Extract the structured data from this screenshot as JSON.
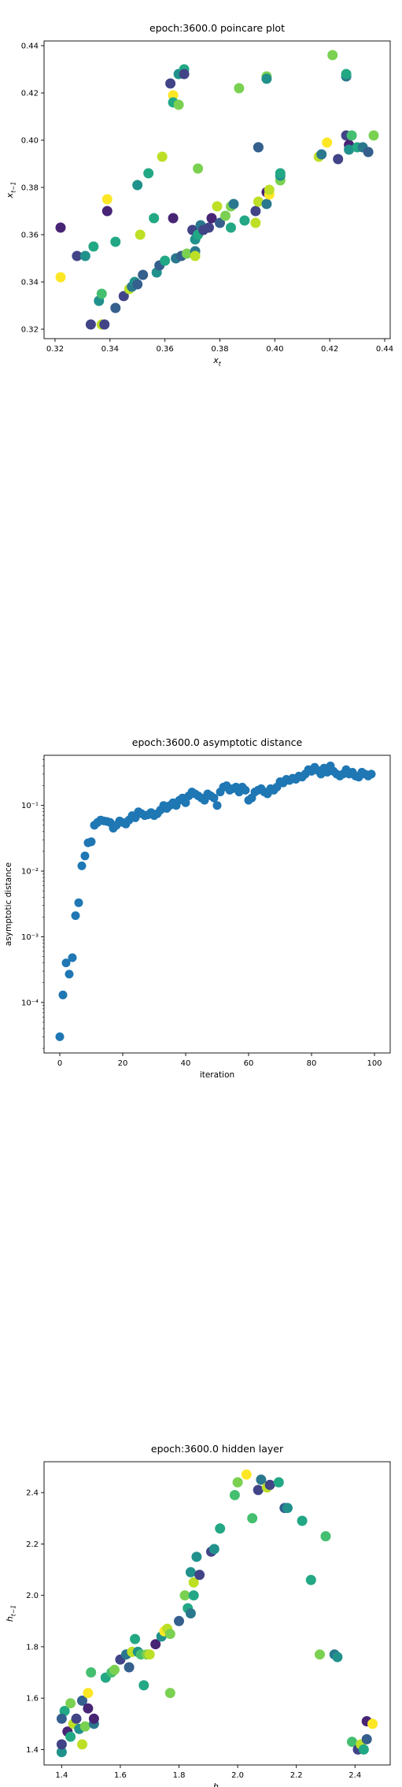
{
  "chart_data": [
    {
      "type": "scatter",
      "title": "epoch:3600.0 poincare plot",
      "xlabel": "x_t",
      "ylabel": "x_{t-1}",
      "xlim": [
        0.316,
        0.442
      ],
      "ylim": [
        0.316,
        0.442
      ],
      "xticks": [
        0.32,
        0.34,
        0.36,
        0.38,
        0.4,
        0.42,
        0.44
      ],
      "yticks": [
        0.32,
        0.34,
        0.36,
        0.38,
        0.4,
        0.42,
        0.44
      ],
      "xtick_labels": [
        "0.32",
        "0.34",
        "0.36",
        "0.38",
        "0.40",
        "0.42",
        "0.44"
      ],
      "ytick_labels": [
        "0.32",
        "0.34",
        "0.36",
        "0.38",
        "0.40",
        "0.42",
        "0.44"
      ],
      "grid": false,
      "colormap": "viridis",
      "points": [
        {
          "x": 0.322,
          "y": 0.363,
          "c": 0.05
        },
        {
          "x": 0.322,
          "y": 0.342,
          "c": 0.95
        },
        {
          "x": 0.328,
          "y": 0.351,
          "c": 0.15
        },
        {
          "x": 0.331,
          "y": 0.351,
          "c": 0.45
        },
        {
          "x": 0.333,
          "y": 0.322,
          "c": 0.15
        },
        {
          "x": 0.334,
          "y": 0.355,
          "c": 0.55
        },
        {
          "x": 0.336,
          "y": 0.332,
          "c": 0.5
        },
        {
          "x": 0.337,
          "y": 0.322,
          "c": 0.9
        },
        {
          "x": 0.337,
          "y": 0.335,
          "c": 0.7
        },
        {
          "x": 0.338,
          "y": 0.322,
          "c": 0.2
        },
        {
          "x": 0.339,
          "y": 0.375,
          "c": 0.95
        },
        {
          "x": 0.339,
          "y": 0.37,
          "c": 0.05
        },
        {
          "x": 0.342,
          "y": 0.357,
          "c": 0.6
        },
        {
          "x": 0.342,
          "y": 0.329,
          "c": 0.3
        },
        {
          "x": 0.345,
          "y": 0.334,
          "c": 0.2
        },
        {
          "x": 0.347,
          "y": 0.337,
          "c": 0.85
        },
        {
          "x": 0.348,
          "y": 0.338,
          "c": 0.35
        },
        {
          "x": 0.349,
          "y": 0.34,
          "c": 0.45
        },
        {
          "x": 0.35,
          "y": 0.339,
          "c": 0.25
        },
        {
          "x": 0.35,
          "y": 0.381,
          "c": 0.5
        },
        {
          "x": 0.351,
          "y": 0.36,
          "c": 0.9
        },
        {
          "x": 0.352,
          "y": 0.343,
          "c": 0.3
        },
        {
          "x": 0.354,
          "y": 0.386,
          "c": 0.6
        },
        {
          "x": 0.356,
          "y": 0.367,
          "c": 0.6
        },
        {
          "x": 0.357,
          "y": 0.344,
          "c": 0.5
        },
        {
          "x": 0.358,
          "y": 0.347,
          "c": 0.3
        },
        {
          "x": 0.359,
          "y": 0.393,
          "c": 0.85
        },
        {
          "x": 0.36,
          "y": 0.349,
          "c": 0.55
        },
        {
          "x": 0.362,
          "y": 0.424,
          "c": 0.15
        },
        {
          "x": 0.363,
          "y": 0.419,
          "c": 0.95
        },
        {
          "x": 0.363,
          "y": 0.416,
          "c": 0.55
        },
        {
          "x": 0.363,
          "y": 0.367,
          "c": 0.1
        },
        {
          "x": 0.364,
          "y": 0.35,
          "c": 0.35
        },
        {
          "x": 0.365,
          "y": 0.428,
          "c": 0.45
        },
        {
          "x": 0.365,
          "y": 0.415,
          "c": 0.8
        },
        {
          "x": 0.366,
          "y": 0.351,
          "c": 0.25
        },
        {
          "x": 0.367,
          "y": 0.43,
          "c": 0.6
        },
        {
          "x": 0.367,
          "y": 0.428,
          "c": 0.2
        },
        {
          "x": 0.368,
          "y": 0.352,
          "c": 0.8
        },
        {
          "x": 0.37,
          "y": 0.362,
          "c": 0.15
        },
        {
          "x": 0.371,
          "y": 0.353,
          "c": 0.35
        },
        {
          "x": 0.371,
          "y": 0.358,
          "c": 0.5
        },
        {
          "x": 0.371,
          "y": 0.351,
          "c": 0.9
        },
        {
          "x": 0.372,
          "y": 0.36,
          "c": 0.6
        },
        {
          "x": 0.372,
          "y": 0.388,
          "c": 0.8
        },
        {
          "x": 0.373,
          "y": 0.364,
          "c": 0.4
        },
        {
          "x": 0.374,
          "y": 0.362,
          "c": 0.2
        },
        {
          "x": 0.376,
          "y": 0.363,
          "c": 0.15
        },
        {
          "x": 0.377,
          "y": 0.367,
          "c": 0.1
        },
        {
          "x": 0.379,
          "y": 0.372,
          "c": 0.9
        },
        {
          "x": 0.38,
          "y": 0.365,
          "c": 0.25
        },
        {
          "x": 0.382,
          "y": 0.368,
          "c": 0.75
        },
        {
          "x": 0.384,
          "y": 0.363,
          "c": 0.6
        },
        {
          "x": 0.384,
          "y": 0.372,
          "c": 0.8
        },
        {
          "x": 0.385,
          "y": 0.373,
          "c": 0.4
        },
        {
          "x": 0.387,
          "y": 0.422,
          "c": 0.8
        },
        {
          "x": 0.389,
          "y": 0.366,
          "c": 0.6
        },
        {
          "x": 0.393,
          "y": 0.37,
          "c": 0.2
        },
        {
          "x": 0.393,
          "y": 0.365,
          "c": 0.85
        },
        {
          "x": 0.394,
          "y": 0.374,
          "c": 0.9
        },
        {
          "x": 0.394,
          "y": 0.397,
          "c": 0.6
        },
        {
          "x": 0.394,
          "y": 0.397,
          "c": 0.25
        },
        {
          "x": 0.397,
          "y": 0.427,
          "c": 0.75
        },
        {
          "x": 0.397,
          "y": 0.426,
          "c": 0.45
        },
        {
          "x": 0.397,
          "y": 0.373,
          "c": 0.4
        },
        {
          "x": 0.397,
          "y": 0.378,
          "c": 0.1
        },
        {
          "x": 0.398,
          "y": 0.377,
          "c": 0.95
        },
        {
          "x": 0.398,
          "y": 0.379,
          "c": 0.85
        },
        {
          "x": 0.402,
          "y": 0.383,
          "c": 0.75
        },
        {
          "x": 0.402,
          "y": 0.385,
          "c": 0.45
        },
        {
          "x": 0.402,
          "y": 0.386,
          "c": 0.6
        },
        {
          "x": 0.416,
          "y": 0.393,
          "c": 0.85
        },
        {
          "x": 0.417,
          "y": 0.394,
          "c": 0.35
        },
        {
          "x": 0.419,
          "y": 0.399,
          "c": 0.95
        },
        {
          "x": 0.421,
          "y": 0.436,
          "c": 0.8
        },
        {
          "x": 0.423,
          "y": 0.392,
          "c": 0.15
        },
        {
          "x": 0.426,
          "y": 0.427,
          "c": 0.4
        },
        {
          "x": 0.426,
          "y": 0.428,
          "c": 0.6
        },
        {
          "x": 0.426,
          "y": 0.402,
          "c": 0.2
        },
        {
          "x": 0.427,
          "y": 0.398,
          "c": 0.1
        },
        {
          "x": 0.427,
          "y": 0.396,
          "c": 0.5
        },
        {
          "x": 0.428,
          "y": 0.402,
          "c": 0.65
        },
        {
          "x": 0.43,
          "y": 0.397,
          "c": 0.55
        },
        {
          "x": 0.432,
          "y": 0.397,
          "c": 0.4
        },
        {
          "x": 0.434,
          "y": 0.395,
          "c": 0.25
        },
        {
          "x": 0.436,
          "y": 0.402,
          "c": 0.75
        }
      ]
    },
    {
      "type": "scatter",
      "title": "epoch:3600.0 asymptotic distance",
      "xlabel": "iteration",
      "ylabel": "asymptotic distance",
      "xlim": [
        -5,
        105
      ],
      "yscale": "log",
      "ylim": [
        1.7e-05,
        0.58
      ],
      "xticks": [
        0,
        20,
        40,
        60,
        80,
        100
      ],
      "xtick_labels": [
        "0",
        "20",
        "40",
        "60",
        "80",
        "100"
      ],
      "yticks": [
        0.0001,
        0.001,
        0.01,
        0.1
      ],
      "ytick_labels": [
        "10⁻⁴",
        "10⁻³",
        "10⁻²",
        "10⁻¹"
      ],
      "grid": false,
      "color": "#1f77b4",
      "x": [
        0,
        1,
        2,
        3,
        4,
        5,
        6,
        7,
        8,
        9,
        10,
        11,
        12,
        13,
        14,
        15,
        16,
        17,
        18,
        19,
        20,
        21,
        22,
        23,
        24,
        25,
        26,
        27,
        28,
        29,
        30,
        31,
        32,
        33,
        34,
        35,
        36,
        37,
        38,
        39,
        40,
        41,
        42,
        43,
        44,
        45,
        46,
        47,
        48,
        49,
        50,
        51,
        52,
        53,
        54,
        55,
        56,
        57,
        58,
        59,
        60,
        61,
        62,
        63,
        64,
        65,
        66,
        67,
        68,
        69,
        70,
        71,
        72,
        73,
        74,
        75,
        76,
        77,
        78,
        79,
        80,
        81,
        82,
        83,
        84,
        85,
        86,
        87,
        88,
        89,
        90,
        91,
        92,
        93,
        94,
        95,
        96,
        97,
        98,
        99
      ],
      "y": [
        3e-05,
        0.00013,
        0.0004,
        0.00027,
        0.00048,
        0.0021,
        0.0033,
        0.012,
        0.017,
        0.027,
        0.028,
        0.05,
        0.055,
        0.06,
        0.058,
        0.057,
        0.055,
        0.045,
        0.05,
        0.058,
        0.055,
        0.052,
        0.06,
        0.07,
        0.065,
        0.08,
        0.075,
        0.07,
        0.072,
        0.078,
        0.07,
        0.075,
        0.085,
        0.1,
        0.09,
        0.1,
        0.11,
        0.1,
        0.12,
        0.13,
        0.11,
        0.14,
        0.16,
        0.15,
        0.14,
        0.13,
        0.12,
        0.15,
        0.14,
        0.13,
        0.1,
        0.16,
        0.19,
        0.2,
        0.17,
        0.18,
        0.19,
        0.16,
        0.19,
        0.17,
        0.12,
        0.13,
        0.16,
        0.17,
        0.18,
        0.16,
        0.15,
        0.18,
        0.17,
        0.19,
        0.23,
        0.22,
        0.25,
        0.24,
        0.26,
        0.25,
        0.28,
        0.27,
        0.3,
        0.35,
        0.33,
        0.38,
        0.34,
        0.3,
        0.37,
        0.32,
        0.4,
        0.33,
        0.3,
        0.28,
        0.3,
        0.35,
        0.3,
        0.32,
        0.28,
        0.27,
        0.32,
        0.3,
        0.28,
        0.3
      ]
    },
    {
      "type": "scatter",
      "title": "epoch:3600.0 hidden layer",
      "xlabel": "h_t",
      "ylabel": "h_{t-1}",
      "xlim": [
        1.34,
        2.52
      ],
      "ylim": [
        1.34,
        2.52
      ],
      "xticks": [
        1.4,
        1.6,
        1.8,
        2.0,
        2.2,
        2.4
      ],
      "yticks": [
        1.4,
        1.6,
        1.8,
        2.0,
        2.2,
        2.4
      ],
      "xtick_labels": [
        "1.4",
        "1.6",
        "1.8",
        "2.0",
        "2.2",
        "2.4"
      ],
      "ytick_labels": [
        "1.4",
        "1.6",
        "1.8",
        "2.0",
        "2.2",
        "2.4"
      ],
      "grid": false,
      "colormap": "viridis",
      "points": [
        {
          "x": 1.4,
          "y": 1.39,
          "c": 0.45
        },
        {
          "x": 1.4,
          "y": 1.42,
          "c": 0.2
        },
        {
          "x": 1.41,
          "y": 1.55,
          "c": 0.55
        },
        {
          "x": 1.4,
          "y": 1.52,
          "c": 0.3
        },
        {
          "x": 1.42,
          "y": 1.47,
          "c": 0.1
        },
        {
          "x": 1.43,
          "y": 1.58,
          "c": 0.8
        },
        {
          "x": 1.43,
          "y": 1.45,
          "c": 0.6
        },
        {
          "x": 1.44,
          "y": 1.5,
          "c": 0.9
        },
        {
          "x": 1.45,
          "y": 1.52,
          "c": 0.15
        },
        {
          "x": 1.46,
          "y": 1.48,
          "c": 0.5
        },
        {
          "x": 1.47,
          "y": 1.42,
          "c": 0.85
        },
        {
          "x": 1.47,
          "y": 1.59,
          "c": 0.25
        },
        {
          "x": 1.48,
          "y": 1.49,
          "c": 0.75
        },
        {
          "x": 1.49,
          "y": 1.62,
          "c": 0.95
        },
        {
          "x": 1.49,
          "y": 1.56,
          "c": 0.05
        },
        {
          "x": 1.5,
          "y": 1.7,
          "c": 0.65
        },
        {
          "x": 1.51,
          "y": 1.5,
          "c": 0.35
        },
        {
          "x": 1.51,
          "y": 1.52,
          "c": 0.1
        },
        {
          "x": 1.55,
          "y": 1.68,
          "c": 0.55
        },
        {
          "x": 1.57,
          "y": 1.7,
          "c": 0.7
        },
        {
          "x": 1.58,
          "y": 1.71,
          "c": 0.8
        },
        {
          "x": 1.6,
          "y": 1.75,
          "c": 0.15
        },
        {
          "x": 1.62,
          "y": 1.77,
          "c": 0.4
        },
        {
          "x": 1.63,
          "y": 1.72,
          "c": 0.25
        },
        {
          "x": 1.64,
          "y": 1.78,
          "c": 0.9
        },
        {
          "x": 1.65,
          "y": 1.83,
          "c": 0.55
        },
        {
          "x": 1.66,
          "y": 1.78,
          "c": 0.45
        },
        {
          "x": 1.67,
          "y": 1.77,
          "c": 0.65
        },
        {
          "x": 1.68,
          "y": 1.65,
          "c": 0.6
        },
        {
          "x": 1.69,
          "y": 1.77,
          "c": 0.75
        },
        {
          "x": 1.7,
          "y": 1.77,
          "c": 0.85
        },
        {
          "x": 1.72,
          "y": 1.81,
          "c": 0.1
        },
        {
          "x": 1.74,
          "y": 1.84,
          "c": 0.5
        },
        {
          "x": 1.75,
          "y": 1.86,
          "c": 0.95
        },
        {
          "x": 1.76,
          "y": 1.87,
          "c": 0.9
        },
        {
          "x": 1.77,
          "y": 1.62,
          "c": 0.75
        },
        {
          "x": 1.77,
          "y": 1.85,
          "c": 0.8
        },
        {
          "x": 1.8,
          "y": 1.9,
          "c": 0.25
        },
        {
          "x": 1.82,
          "y": 2.0,
          "c": 0.8
        },
        {
          "x": 1.83,
          "y": 1.95,
          "c": 0.55
        },
        {
          "x": 1.84,
          "y": 1.93,
          "c": 0.35
        },
        {
          "x": 1.84,
          "y": 2.09,
          "c": 0.45
        },
        {
          "x": 1.85,
          "y": 2.0,
          "c": 0.6
        },
        {
          "x": 1.85,
          "y": 2.05,
          "c": 0.9
        },
        {
          "x": 1.86,
          "y": 2.15,
          "c": 0.5
        },
        {
          "x": 1.87,
          "y": 2.08,
          "c": 0.15
        },
        {
          "x": 1.91,
          "y": 2.17,
          "c": 0.2
        },
        {
          "x": 1.92,
          "y": 2.18,
          "c": 0.45
        },
        {
          "x": 1.94,
          "y": 2.26,
          "c": 0.6
        },
        {
          "x": 1.99,
          "y": 2.39,
          "c": 0.7
        },
        {
          "x": 2.0,
          "y": 2.44,
          "c": 0.75
        },
        {
          "x": 2.03,
          "y": 2.47,
          "c": 0.95
        },
        {
          "x": 2.05,
          "y": 2.3,
          "c": 0.65
        },
        {
          "x": 2.07,
          "y": 2.41,
          "c": 0.2
        },
        {
          "x": 2.08,
          "y": 2.45,
          "c": 0.4
        },
        {
          "x": 2.1,
          "y": 2.42,
          "c": 0.9
        },
        {
          "x": 2.11,
          "y": 2.43,
          "c": 0.15
        },
        {
          "x": 2.14,
          "y": 2.44,
          "c": 0.55
        },
        {
          "x": 2.16,
          "y": 2.34,
          "c": 0.3
        },
        {
          "x": 2.17,
          "y": 2.34,
          "c": 0.45
        },
        {
          "x": 2.22,
          "y": 2.29,
          "c": 0.6
        },
        {
          "x": 2.25,
          "y": 2.06,
          "c": 0.55
        },
        {
          "x": 2.28,
          "y": 1.77,
          "c": 0.75
        },
        {
          "x": 2.3,
          "y": 2.23,
          "c": 0.65
        },
        {
          "x": 2.33,
          "y": 1.77,
          "c": 0.35
        },
        {
          "x": 2.34,
          "y": 1.76,
          "c": 0.5
        },
        {
          "x": 2.39,
          "y": 1.43,
          "c": 0.7
        },
        {
          "x": 2.41,
          "y": 1.4,
          "c": 0.2
        },
        {
          "x": 2.42,
          "y": 1.42,
          "c": 0.9
        },
        {
          "x": 2.43,
          "y": 1.4,
          "c": 0.55
        },
        {
          "x": 2.44,
          "y": 1.44,
          "c": 0.25
        },
        {
          "x": 2.44,
          "y": 1.51,
          "c": 0.1
        },
        {
          "x": 2.46,
          "y": 1.5,
          "c": 0.95
        }
      ]
    }
  ]
}
